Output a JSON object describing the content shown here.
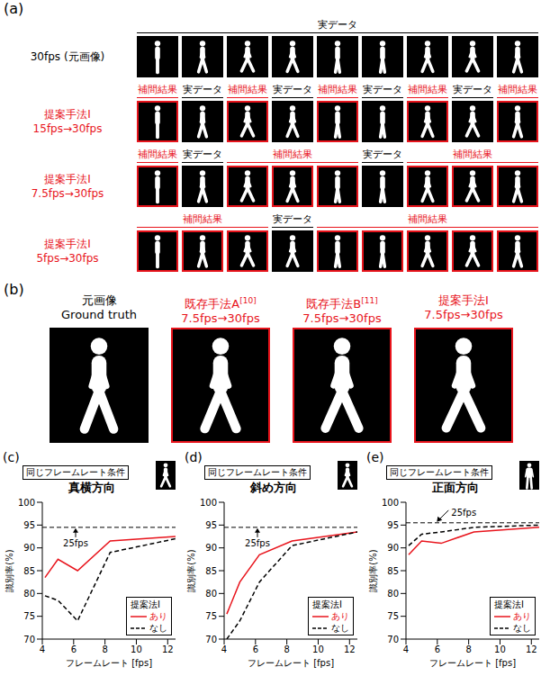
{
  "panel_a": {
    "label": "(a)",
    "rows": [
      {
        "label": [
          "30fps (元画像)"
        ],
        "color": "#000000",
        "segments": [
          {
            "text": "実データ",
            "frames": 9,
            "color": "#000000"
          }
        ]
      },
      {
        "label": [
          "提案手法I",
          "15fps→30fps"
        ],
        "color": "#e8141c",
        "segments": [
          {
            "text": "補間結果",
            "frames": 1,
            "color": "#e8141c"
          },
          {
            "text": "実データ",
            "frames": 1,
            "color": "#000000"
          },
          {
            "text": "補間結果",
            "frames": 1,
            "color": "#e8141c"
          },
          {
            "text": "実データ",
            "frames": 1,
            "color": "#000000"
          },
          {
            "text": "補間結果",
            "frames": 1,
            "color": "#e8141c"
          },
          {
            "text": "実データ",
            "frames": 1,
            "color": "#000000"
          },
          {
            "text": "補間結果",
            "frames": 1,
            "color": "#e8141c"
          },
          {
            "text": "実データ",
            "frames": 1,
            "color": "#000000"
          },
          {
            "text": "補間結果",
            "frames": 1,
            "color": "#e8141c"
          }
        ]
      },
      {
        "label": [
          "提案手法I",
          "7.5fps→30fps"
        ],
        "color": "#e8141c",
        "segments": [
          {
            "text": "補間結果",
            "frames": 1,
            "color": "#e8141c"
          },
          {
            "text": "実データ",
            "frames": 1,
            "color": "#000000"
          },
          {
            "text": "補間結果",
            "frames": 3,
            "color": "#e8141c"
          },
          {
            "text": "実データ",
            "frames": 1,
            "color": "#000000"
          },
          {
            "text": "補間結果",
            "frames": 3,
            "color": "#e8141c"
          }
        ]
      },
      {
        "label": [
          "提案手法I",
          "5fps→30fps"
        ],
        "color": "#e8141c",
        "segments": [
          {
            "text": "補間結果",
            "frames": 3,
            "color": "#e8141c"
          },
          {
            "text": "実データ",
            "frames": 1,
            "color": "#000000"
          },
          {
            "text": "補間結果",
            "frames": 5,
            "color": "#e8141c"
          }
        ]
      }
    ]
  },
  "panel_b": {
    "label": "(b)",
    "columns": [
      {
        "title": [
          "元画像",
          "Ground truth"
        ],
        "color": "#000000"
      },
      {
        "title": [
          "既存手法A",
          "7.5fps→30fps"
        ],
        "reference": "[10]",
        "color": "#e8141c"
      },
      {
        "title": [
          "既存手法B",
          "7.5fps→30fps"
        ],
        "reference": "[11]",
        "color": "#e8141c"
      },
      {
        "title": [
          "提案手法I",
          "7.5fps→30fps"
        ],
        "color": "#e8141c"
      }
    ]
  },
  "chart_data": [
    {
      "panel": "(c)",
      "type": "line",
      "subtitle": "同じフレームレート条件",
      "title": "真横方向",
      "x_label": "フレームレート [fps]",
      "y_label": "識別率(%)",
      "x": [
        4.17,
        5,
        6.25,
        8.33,
        12.5
      ],
      "xlim": [
        4,
        12.5
      ],
      "xticks": [
        4,
        6,
        8,
        10,
        12
      ],
      "ylim": [
        70,
        100
      ],
      "yticks": [
        70,
        75,
        80,
        85,
        90,
        95,
        100
      ],
      "grid": false,
      "legend": "lower right",
      "legend_title": "提案法I",
      "series": [
        {
          "name": "あり",
          "color": "#e8141c",
          "line_style": "solid",
          "marker": "none",
          "values": [
            83.5,
            87.5,
            85,
            91.5,
            92.5
          ]
        },
        {
          "name": "なし",
          "color": "#000000",
          "line_style": "dashed",
          "marker": "none",
          "values": [
            79.5,
            78.5,
            74,
            89,
            92
          ]
        }
      ],
      "annotations": [
        {
          "text": "25fps",
          "y": 94.5
        }
      ]
    },
    {
      "panel": "(d)",
      "type": "line",
      "subtitle": "同じフレームレート条件",
      "title": "斜め方向",
      "x_label": "フレームレート [fps]",
      "y_label": "識別率(%)",
      "x": [
        4.17,
        5,
        6.25,
        8.33,
        12.5
      ],
      "xlim": [
        4,
        12.5
      ],
      "xticks": [
        4,
        6,
        8,
        10,
        12
      ],
      "ylim": [
        70,
        100
      ],
      "yticks": [
        70,
        75,
        80,
        85,
        90,
        95,
        100
      ],
      "grid": false,
      "legend": "lower right",
      "legend_title": "提案法I",
      "series": [
        {
          "name": "あり",
          "color": "#e8141c",
          "line_style": "solid",
          "marker": "none",
          "values": [
            75.5,
            82.5,
            88.5,
            91.5,
            93.5
          ]
        },
        {
          "name": "なし",
          "color": "#000000",
          "line_style": "dashed",
          "marker": "none",
          "values": [
            70,
            74,
            82.5,
            90.5,
            93.5
          ]
        }
      ],
      "annotations": [
        {
          "text": "25fps",
          "y": 94.5
        }
      ]
    },
    {
      "panel": "(e)",
      "type": "line",
      "subtitle": "同じフレームレート条件",
      "title": "正面方向",
      "x_label": "フレームレート [fps]",
      "y_label": "識別率(%)",
      "x": [
        4.17,
        5,
        6.25,
        8.33,
        12.5
      ],
      "xlim": [
        4,
        12.5
      ],
      "xticks": [
        4,
        6,
        8,
        10,
        12
      ],
      "ylim": [
        70,
        100
      ],
      "yticks": [
        70,
        75,
        80,
        85,
        90,
        95,
        100
      ],
      "grid": false,
      "legend": "lower right",
      "legend_title": "提案法I",
      "series": [
        {
          "name": "あり",
          "color": "#e8141c",
          "line_style": "solid",
          "marker": "none",
          "values": [
            88.5,
            91.5,
            91,
            93.5,
            94.5
          ]
        },
        {
          "name": "なし",
          "color": "#000000",
          "line_style": "dashed",
          "marker": "none",
          "values": [
            90.5,
            93,
            93.5,
            94.5,
            95
          ]
        }
      ],
      "annotations": [
        {
          "text": "25fps",
          "y": 95.5
        }
      ]
    }
  ]
}
